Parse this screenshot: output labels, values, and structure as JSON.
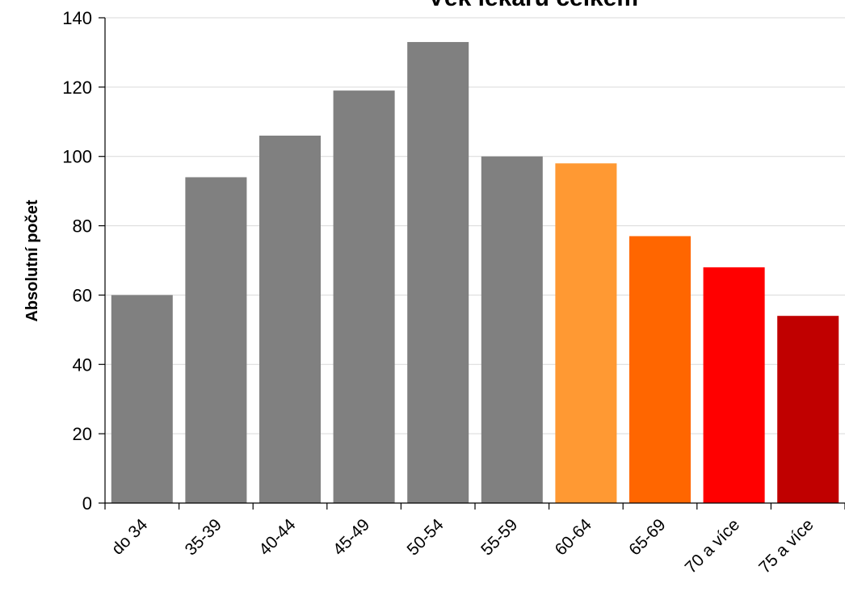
{
  "chart_data": {
    "type": "bar",
    "title": "Věk lékařů celkem",
    "xlabel": "",
    "ylabel": "Absolutní počet",
    "categories": [
      "do 34",
      "35-39",
      "40-44",
      "45-49",
      "50-54",
      "55-59",
      "60-64",
      "65-69",
      "70 a více",
      "75 a více"
    ],
    "values": [
      60,
      94,
      106,
      119,
      133,
      100,
      98,
      77,
      68,
      54
    ],
    "bar_colors": [
      "#808080",
      "#808080",
      "#808080",
      "#808080",
      "#808080",
      "#808080",
      "#FF9933",
      "#FF6600",
      "#FF0000",
      "#C00000"
    ],
    "ylim": [
      0,
      140
    ],
    "yticks": [
      0,
      20,
      40,
      60,
      80,
      100,
      120,
      140
    ],
    "grid": true,
    "gridline_color": "#d9d9d9",
    "legend": "none"
  }
}
